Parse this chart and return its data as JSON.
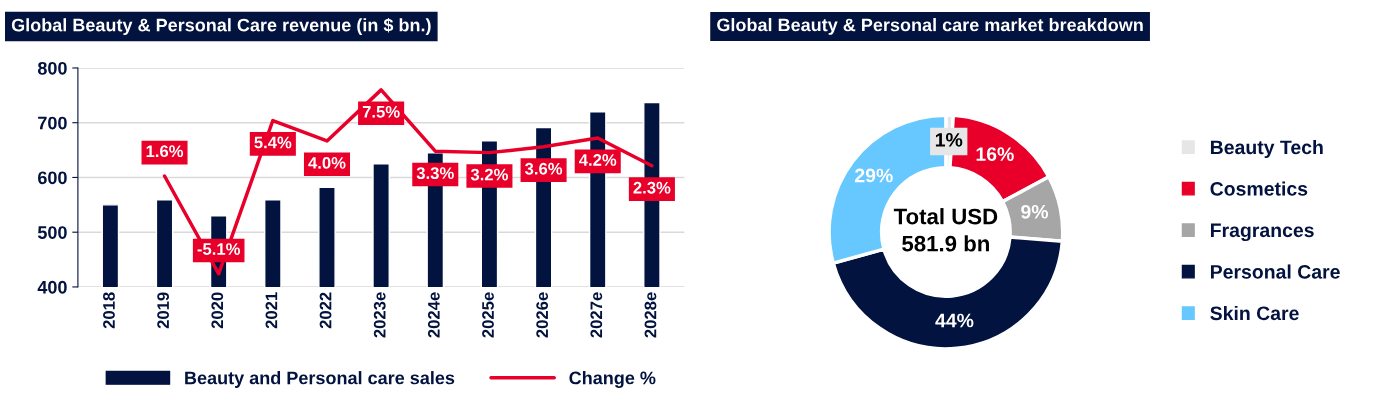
{
  "chart_data": [
    {
      "type": "bar",
      "title": "Global Beauty & Personal Care revenue (in $ bn.)",
      "categories": [
        "2018",
        "2019",
        "2020",
        "2021",
        "2022",
        "2023e",
        "2024e",
        "2025e",
        "2026e",
        "2027e",
        "2028e"
      ],
      "series": [
        {
          "name": "Beauty and Personal care sales",
          "color": "#03133f",
          "values": [
            550,
            559,
            530,
            559,
            582,
            625,
            645,
            667,
            691,
            720,
            737
          ]
        },
        {
          "name": "Change %",
          "type": "line",
          "axis": "y2",
          "color": "#e8002a",
          "values": [
            null,
            1.6,
            -5.1,
            5.4,
            4.0,
            7.5,
            3.3,
            3.2,
            3.6,
            4.2,
            2.3
          ],
          "value_labels": [
            null,
            "1.6%",
            "-5.1%",
            "5.4%",
            "4.0%",
            "7.5%",
            "3.3%",
            "3.2%",
            "3.6%",
            "4.2%",
            "2.3%"
          ]
        }
      ],
      "ylim": [
        400,
        800
      ],
      "yticks": [
        400,
        500,
        600,
        700,
        800
      ],
      "y2lim": [
        -6,
        9
      ],
      "grid": "y",
      "legend": "bottom",
      "line_style": "solid"
    },
    {
      "type": "donut",
      "title": "Global Beauty & Personal care market breakdown",
      "categories": [
        "Beauty Tech",
        "Cosmetics",
        "Fragrances",
        "Personal Care",
        "Skin Care"
      ],
      "values": [
        1,
        16,
        9,
        44,
        29
      ],
      "colors": [
        "#e6e6e6",
        "#e8002a",
        "#a6a6a6",
        "#03133f",
        "#66c8ff"
      ],
      "value_labels": [
        "1%",
        "16%",
        "9%",
        "44%",
        "29%"
      ],
      "legend": "right",
      "annotations": [
        "Total USD\n581.9 bn"
      ]
    }
  ]
}
